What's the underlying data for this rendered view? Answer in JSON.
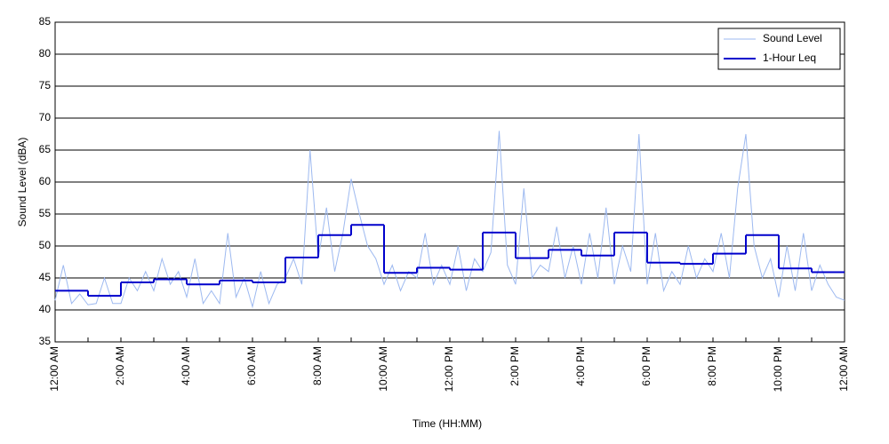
{
  "chart_data": {
    "type": "line",
    "xlabel": "Time (HH:MM)",
    "ylabel": "Sound Level (dBA)",
    "xlim": [
      0,
      24
    ],
    "ylim": [
      35,
      85
    ],
    "xticks": [
      {
        "value": 0,
        "label": "12:00 AM"
      },
      {
        "value": 2,
        "label": "2:00 AM"
      },
      {
        "value": 4,
        "label": "4:00 AM"
      },
      {
        "value": 6,
        "label": "6:00 AM"
      },
      {
        "value": 8,
        "label": "8:00 AM"
      },
      {
        "value": 10,
        "label": "10:00 AM"
      },
      {
        "value": 12,
        "label": "12:00 PM"
      },
      {
        "value": 14,
        "label": "2:00 PM"
      },
      {
        "value": 16,
        "label": "4:00 PM"
      },
      {
        "value": 18,
        "label": "6:00 PM"
      },
      {
        "value": 20,
        "label": "8:00 PM"
      },
      {
        "value": 22,
        "label": "10:00 PM"
      },
      {
        "value": 24,
        "label": "12:00 AM"
      }
    ],
    "xminor_ticks": [
      1,
      3,
      5,
      7,
      9,
      11,
      13,
      15,
      17,
      19,
      21,
      23
    ],
    "yticks": [
      35,
      40,
      45,
      50,
      55,
      60,
      65,
      70,
      75,
      80,
      85
    ],
    "grid": true,
    "legend": "upper right",
    "series": [
      {
        "name": "Sound Level",
        "color": "#9db9f0",
        "style": "line",
        "x": [
          0,
          0.25,
          0.5,
          0.75,
          1,
          1.25,
          1.5,
          1.75,
          2,
          2.25,
          2.5,
          2.75,
          3,
          3.25,
          3.5,
          3.75,
          4,
          4.25,
          4.5,
          4.75,
          5,
          5.25,
          5.5,
          5.75,
          6,
          6.25,
          6.5,
          6.75,
          7,
          7.25,
          7.5,
          7.75,
          8,
          8.25,
          8.5,
          8.75,
          9,
          9.25,
          9.5,
          9.75,
          10,
          10.25,
          10.5,
          10.75,
          11,
          11.25,
          11.5,
          11.75,
          12,
          12.25,
          12.5,
          12.75,
          13,
          13.25,
          13.5,
          13.75,
          14,
          14.25,
          14.5,
          14.75,
          15,
          15.25,
          15.5,
          15.75,
          16,
          16.25,
          16.5,
          16.75,
          17,
          17.25,
          17.5,
          17.75,
          18,
          18.25,
          18.5,
          18.75,
          19,
          19.25,
          19.5,
          19.75,
          20,
          20.25,
          20.5,
          20.75,
          21,
          21.25,
          21.5,
          21.75,
          22,
          22.25,
          22.5,
          22.75,
          23,
          23.25,
          23.5,
          23.75,
          24
        ],
        "values": [
          41.5,
          47,
          41,
          42.5,
          40.8,
          41,
          45,
          41,
          41,
          45,
          43,
          46,
          43,
          48,
          44,
          46,
          42,
          48,
          41,
          43,
          41,
          52,
          42,
          45,
          40.5,
          46,
          41,
          44,
          45,
          48,
          44,
          65,
          48,
          56,
          46,
          52,
          60.5,
          55,
          50,
          48,
          44,
          47,
          43,
          46,
          45,
          52,
          44,
          47,
          44,
          50,
          43,
          48,
          46,
          49,
          68,
          47,
          44,
          59,
          45,
          47,
          46,
          53,
          45,
          50,
          44,
          52,
          45,
          56,
          44,
          50,
          46,
          67.5,
          44,
          52,
          43,
          46,
          44,
          50,
          45,
          48,
          46,
          52,
          45,
          59,
          67.5,
          50,
          45,
          48,
          42,
          50,
          43,
          52,
          43,
          47,
          44,
          42,
          41.5
        ]
      },
      {
        "name": "1-Hour Leq",
        "color": "#0000cc",
        "style": "step",
        "x": [
          0,
          1,
          2,
          3,
          4,
          5,
          6,
          7,
          8,
          9,
          10,
          11,
          12,
          13,
          14,
          15,
          16,
          17,
          18,
          19,
          20,
          21,
          22,
          23
        ],
        "values": [
          43,
          42.2,
          44.3,
          44.8,
          44,
          44.6,
          44.3,
          48.2,
          51.7,
          53.3,
          45.8,
          46.6,
          46.3,
          52.1,
          48.1,
          49.4,
          48.5,
          52.1,
          47.4,
          47.2,
          48.8,
          51.7,
          46.5,
          45.9
        ]
      }
    ]
  }
}
